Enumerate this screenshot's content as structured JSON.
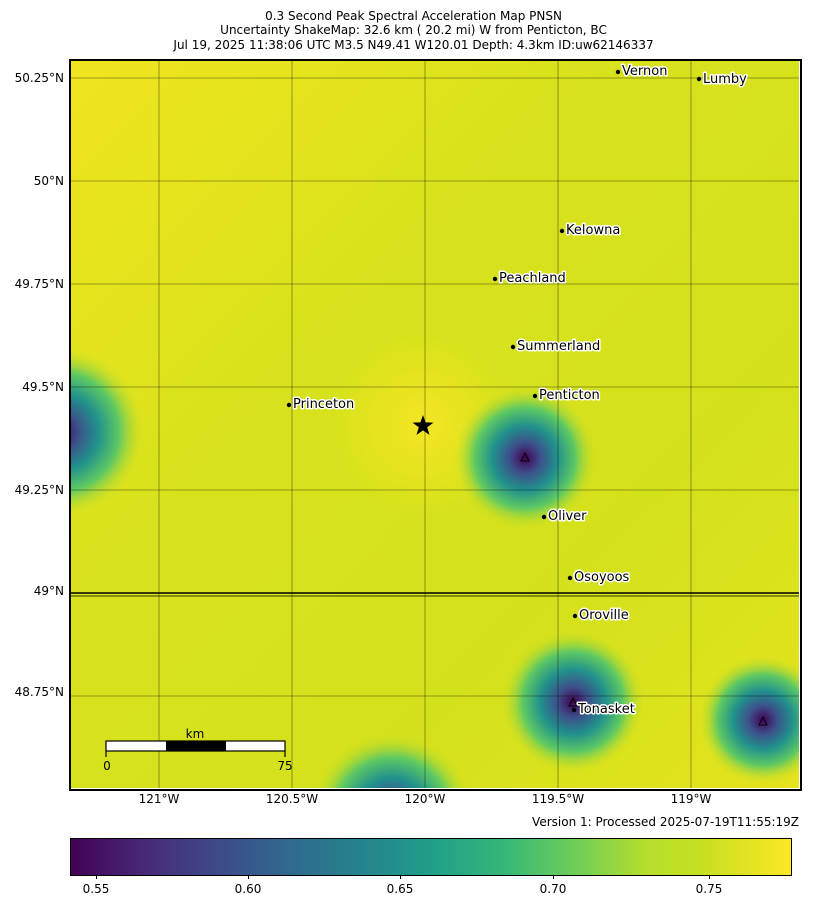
{
  "title": {
    "line1": "0.3 Second Peak Spectral Acceleration Map PNSN",
    "line2": "Uncertainty ShakeMap: 32.6 km (  20.2 mi) W from Penticton, BC",
    "line3": "Jul 19, 2025 11:38:06 UTC M3.5 N49.41 W120.01 Depth: 4.3km ID:uw62146337"
  },
  "map": {
    "lat_labels": [
      "50.25°N",
      "50°N",
      "49.75°N",
      "49.5°N",
      "49.25°N",
      "49°N",
      "48.75°N"
    ],
    "lon_labels": [
      "121°W",
      "120.5°W",
      "120°W",
      "119.5°W",
      "119°W"
    ],
    "cities": [
      "Vernon",
      "Lumby",
      "Kelowna",
      "Peachland",
      "Summerland",
      "Penticton",
      "Princeton",
      "Oliver",
      "Osoyoos",
      "Oroville",
      "Tonasket"
    ],
    "epicenter": {
      "lat": 49.41,
      "lon": -120.01
    },
    "scale_bar": {
      "unit": "km",
      "start": "0",
      "end": "75"
    }
  },
  "version": "Version 1: Processed 2025-07-19T11:55:19Z",
  "colorbar": {
    "labels": [
      "0.55",
      "0.60",
      "0.65",
      "0.70",
      "0.75"
    ],
    "min_color": "#440154",
    "mid_color": "#21918c",
    "max_color": "#fde725"
  }
}
